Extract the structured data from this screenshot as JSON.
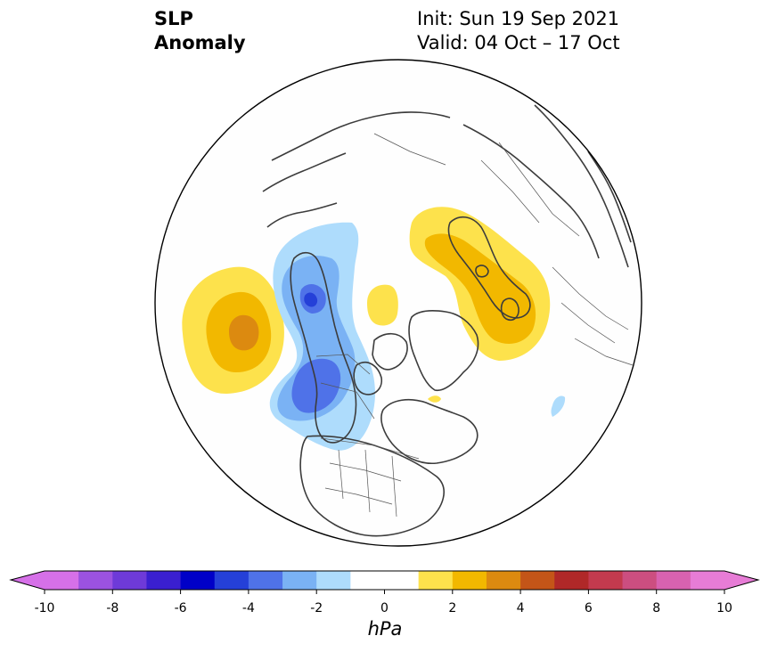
{
  "title": {
    "line1": "SLP",
    "line2": "Anomaly"
  },
  "info": {
    "init": "Init: Sun 19 Sep 2021",
    "valid": "Valid: 04 Oct – 17 Oct"
  },
  "colorbar": {
    "unit": "hPa",
    "ticks": [
      "-10",
      "-8",
      "-6",
      "-4",
      "-2",
      "0",
      "2",
      "4",
      "6",
      "8",
      "10"
    ],
    "colors": [
      "#d670e8",
      "#9b52e0",
      "#6e3ad8",
      "#3a1fd0",
      "#0000c8",
      "#2540d8",
      "#4f72e8",
      "#7ab2f4",
      "#aedcfc",
      "#ffffff",
      "#ffffff",
      "#fde24c",
      "#f2b800",
      "#dc8a10",
      "#c45518",
      "#b02828",
      "#c33a4e",
      "#cc4e80",
      "#d862b0",
      "#e77cd6"
    ],
    "left_arrow_color": "#d670e8",
    "right_arrow_color": "#e77cd6"
  },
  "map": {
    "projection": "north-polar-stereographic",
    "anomaly_regions": [
      {
        "name": "north-pacific-high",
        "peak_hpa": 4,
        "sign": "positive"
      },
      {
        "name": "alaska-west-canada-low",
        "peak_hpa": -4,
        "sign": "negative"
      },
      {
        "name": "scandinavia-barents-high",
        "peak_hpa": 3,
        "sign": "positive"
      },
      {
        "name": "arctic-ocean-high",
        "peak_hpa": 1,
        "sign": "positive"
      }
    ]
  }
}
